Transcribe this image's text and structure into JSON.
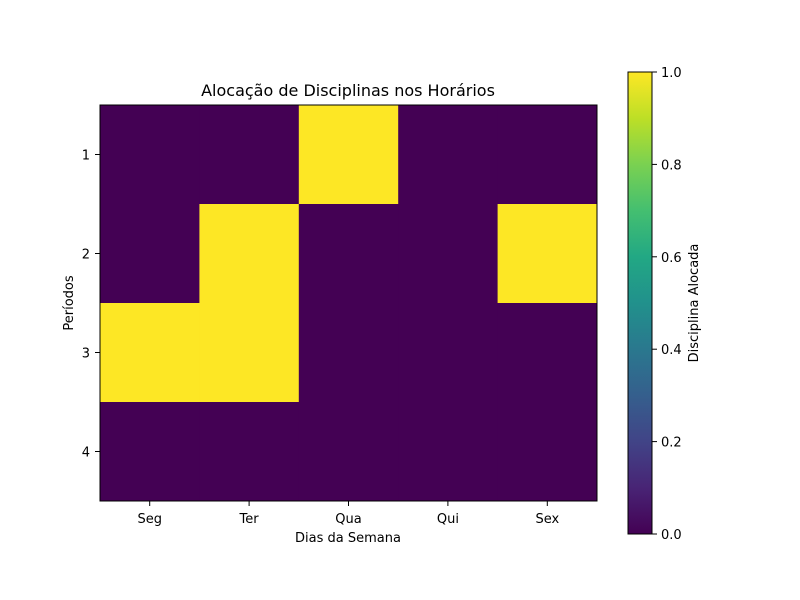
{
  "chart_data": {
    "type": "heatmap",
    "title": "Alocação de Disciplinas nos Horários",
    "xlabel": "Dias da Semana",
    "ylabel": "Períodos",
    "x_categories": [
      "Seg",
      "Ter",
      "Qua",
      "Qui",
      "Sex"
    ],
    "y_categories": [
      "1",
      "2",
      "3",
      "4"
    ],
    "values": [
      [
        0,
        0,
        1,
        0,
        0
      ],
      [
        0,
        1,
        0,
        0,
        1
      ],
      [
        1,
        1,
        0,
        0,
        0
      ],
      [
        0,
        0,
        0,
        0,
        0
      ]
    ],
    "colormap": "viridis",
    "vmin": 0,
    "vmax": 1,
    "colors": {
      "low": "#440154",
      "high": "#fde725"
    },
    "colorbar": {
      "label": "Disciplina Alocada",
      "ticks": [
        "0.0",
        "0.2",
        "0.4",
        "0.6",
        "0.8",
        "1.0"
      ],
      "tick_values": [
        0,
        0.2,
        0.4,
        0.6,
        0.8,
        1.0
      ]
    },
    "grid": false
  }
}
